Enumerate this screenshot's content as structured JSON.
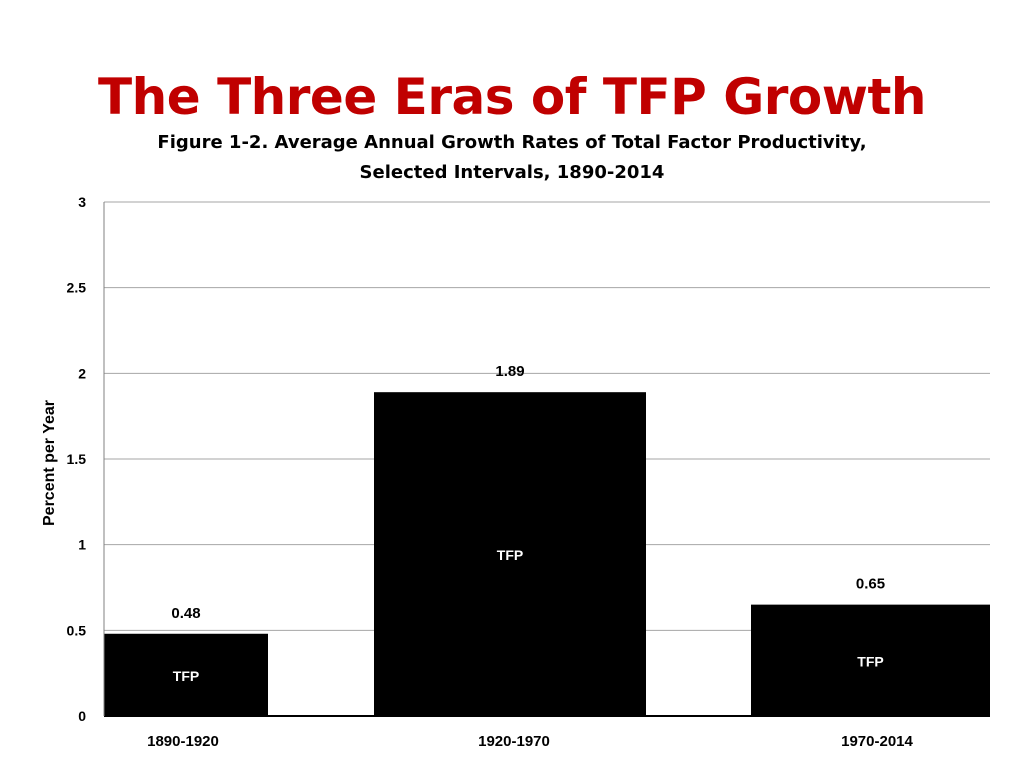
{
  "slide": {
    "title": "The Three Eras of TFP Growth",
    "caption_line1": "Figure 1-2. Average Annual Growth Rates of Total Factor Productivity,",
    "caption_line2": "Selected Intervals, 1890-2014",
    "title_color": "#c00000"
  },
  "chart_data": {
    "type": "bar",
    "categories": [
      "1890-1920",
      "1920-1970",
      "1970-2014"
    ],
    "series": [
      {
        "name": "TFP",
        "values": [
          0.48,
          1.89,
          0.65
        ]
      }
    ],
    "data_labels": [
      "0.48",
      "1.89",
      "0.65"
    ],
    "bar_inner_label": "TFP",
    "ylabel": "Percent per Year",
    "ylim": [
      0,
      3
    ],
    "yticks": [
      0,
      0.5,
      1,
      1.5,
      2,
      2.5,
      3
    ],
    "ytick_labels": [
      "0",
      "0.5",
      "1",
      "1.5",
      "2",
      "2.5",
      "3"
    ],
    "grid": true,
    "legend": "none",
    "bar_color": "#000000",
    "grid_color": "#a6a6a6"
  }
}
